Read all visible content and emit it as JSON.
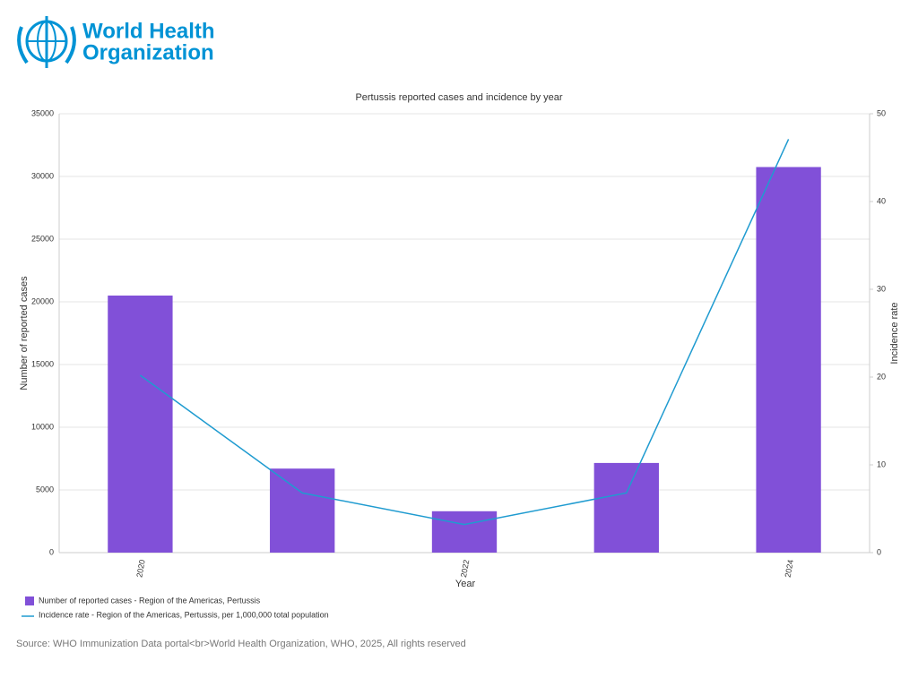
{
  "header": {
    "logo_text": [
      "World Health",
      "Organization"
    ]
  },
  "chart_data": {
    "type": "combo",
    "title": "Pertussis reported cases and incidence by year",
    "x_label": "Year",
    "y_label": "Number of reported cases",
    "y2_label": "Incidence rate",
    "categories": [
      "2020",
      null,
      "2022",
      null,
      "2024"
    ],
    "series": [
      {
        "name": "Number of reported cases - Region of the Americas, Pertussis",
        "type": "bar",
        "color": "#8150d8",
        "values": [
          20500,
          6700,
          3300,
          7150,
          30750
        ]
      },
      {
        "name": "Incidence rate - Region of the Americas, Pertussis, per 1,000,000 total population",
        "type": "line",
        "axis": "y2",
        "color": "#1f9bd0",
        "values": [
          20.2,
          6.8,
          3.2,
          6.8,
          47.1
        ]
      }
    ],
    "ylim": [
      0,
      35000
    ],
    "yticks": [
      0,
      5000,
      10000,
      15000,
      20000,
      25000,
      30000,
      35000
    ],
    "y2lim": [
      0,
      50
    ],
    "y2ticks": [
      0,
      10,
      20,
      30,
      40,
      50
    ],
    "grid": true,
    "legend": "bottom-left",
    "source": "Source: WHO Immunization Data portal<br>World Health Organization, WHO, 2025, All rights reserved"
  }
}
